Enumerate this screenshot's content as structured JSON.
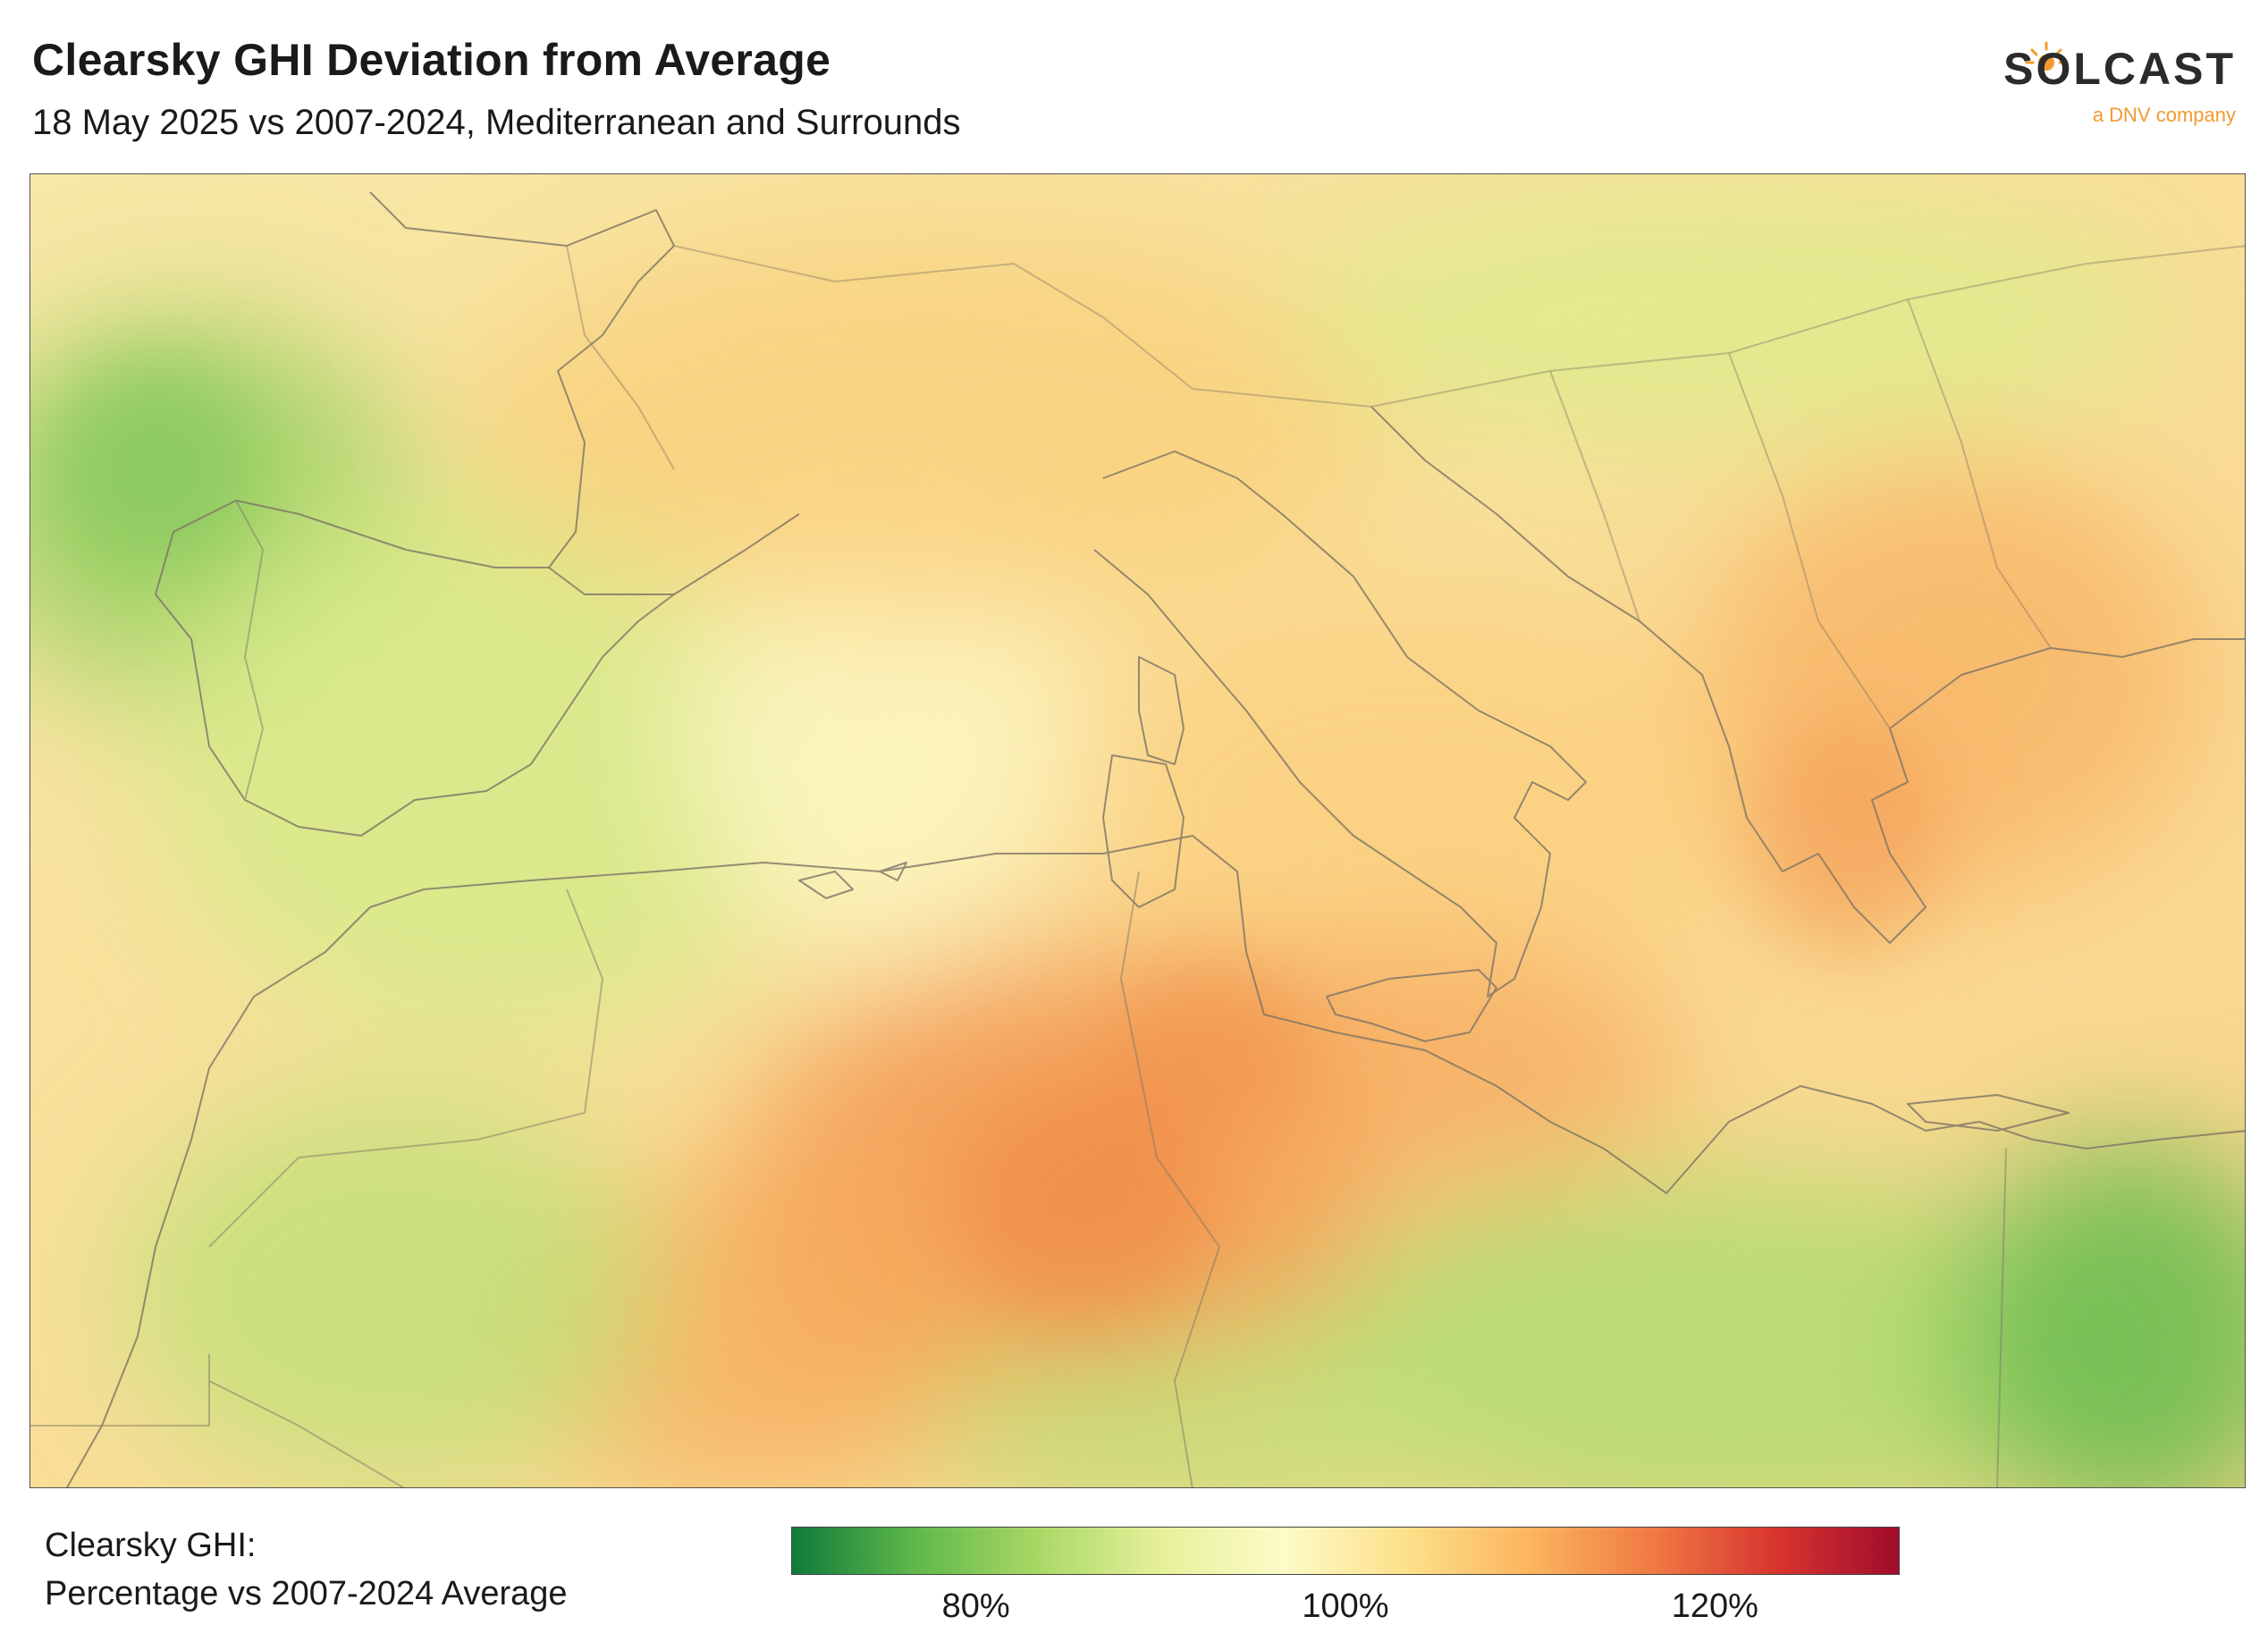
{
  "header": {
    "title": "Clearsky GHI Deviation from Average",
    "subtitle": "18 May 2025 vs 2007-2024, Mediterranean and Surrounds"
  },
  "logo": {
    "word": "SOLCAST",
    "tagline": "a DNV company",
    "accent_color": "#f29a2e",
    "icon": "sun-icon"
  },
  "legend": {
    "label_line1": "Clearsky GHI:",
    "label_line2": "Percentage vs 2007-2024 Average",
    "colormap": [
      "#0f7a3a",
      "#5fb84a",
      "#a9d866",
      "#e6f19a",
      "#fdfbc8",
      "#fde08a",
      "#fbb55e",
      "#f07a43",
      "#d8352f",
      "#a00c2b"
    ],
    "range": [
      70,
      130
    ],
    "ticks": [
      {
        "value": 80,
        "label": "80%"
      },
      {
        "value": 100,
        "label": "100%"
      },
      {
        "value": 120,
        "label": "120%"
      }
    ]
  }
}
